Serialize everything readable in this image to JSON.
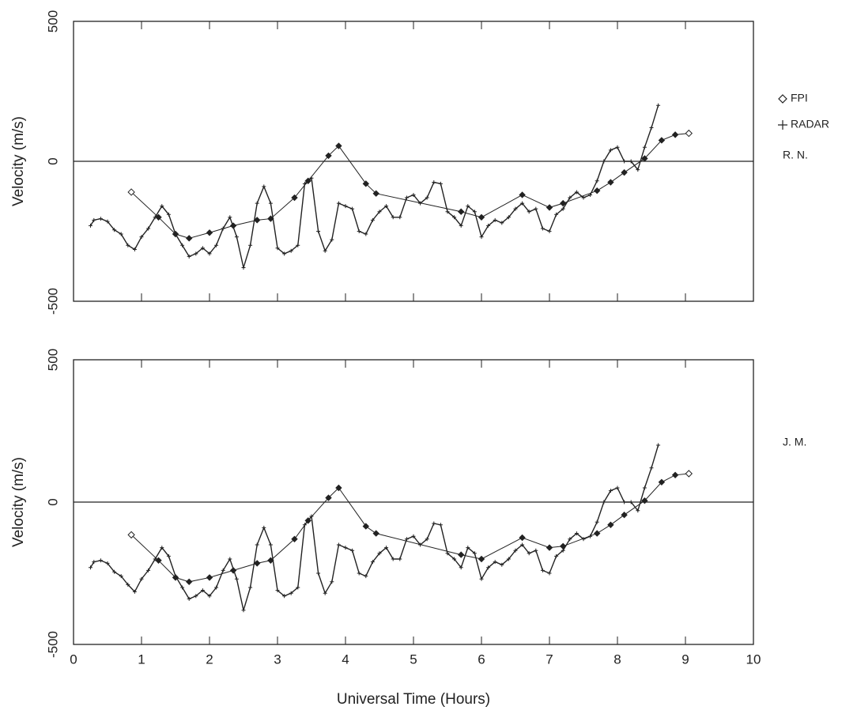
{
  "chart_data": [
    {
      "type": "line",
      "ylabel": "Velocity (m/s)",
      "xlim": [
        0,
        10
      ],
      "xticks": [
        0,
        1,
        2,
        3,
        4,
        5,
        6,
        7,
        8,
        9,
        10
      ],
      "show_xtick_labels": false,
      "ylim": [
        -500,
        500
      ],
      "yticks": [
        -500,
        0,
        500
      ],
      "hline": 0,
      "legend": "right",
      "annotation": "R. N.",
      "series": [
        {
          "name": "FPI",
          "marker": "diamond",
          "color": "#222",
          "x": [
            0.85,
            1.25,
            1.5,
            1.7,
            2.0,
            2.35,
            2.7,
            2.9,
            3.25,
            3.45,
            3.75,
            3.9,
            4.3,
            4.45,
            5.7,
            6.0,
            6.6,
            7.0,
            7.2,
            7.7,
            7.9,
            8.1,
            8.4,
            8.65,
            8.85,
            9.05
          ],
          "values": [
            -110,
            -200,
            -260,
            -275,
            -255,
            -230,
            -210,
            -205,
            -130,
            -70,
            20,
            55,
            -80,
            -115,
            -180,
            -200,
            -120,
            -165,
            -150,
            -105,
            -75,
            -40,
            10,
            75,
            95,
            100
          ]
        },
        {
          "name": "RADAR",
          "marker": "plus",
          "color": "#222",
          "x": [
            0.25,
            0.3,
            0.4,
            0.5,
            0.6,
            0.7,
            0.8,
            0.9,
            1.0,
            1.1,
            1.2,
            1.3,
            1.4,
            1.5,
            1.6,
            1.7,
            1.8,
            1.9,
            2.0,
            2.1,
            2.2,
            2.3,
            2.4,
            2.5,
            2.6,
            2.7,
            2.8,
            2.9,
            3.0,
            3.1,
            3.2,
            3.3,
            3.4,
            3.5,
            3.6,
            3.7,
            3.8,
            3.9,
            4.0,
            4.1,
            4.2,
            4.3,
            4.4,
            4.5,
            4.6,
            4.7,
            4.8,
            4.9,
            5.0,
            5.1,
            5.2,
            5.3,
            5.4,
            5.5,
            5.6,
            5.7,
            5.8,
            5.9,
            6.0,
            6.1,
            6.2,
            6.3,
            6.4,
            6.5,
            6.6,
            6.7,
            6.8,
            6.9,
            7.0,
            7.1,
            7.2,
            7.3,
            7.4,
            7.5,
            7.6,
            7.7,
            7.8,
            7.9,
            8.0,
            8.1,
            8.2,
            8.3,
            8.4,
            8.5,
            8.6
          ],
          "values": [
            -230,
            -210,
            -205,
            -215,
            -245,
            -260,
            -300,
            -315,
            -270,
            -240,
            -200,
            -160,
            -190,
            -260,
            -300,
            -340,
            -330,
            -310,
            -330,
            -300,
            -240,
            -200,
            -270,
            -380,
            -300,
            -150,
            -90,
            -150,
            -310,
            -330,
            -320,
            -300,
            -80,
            -60,
            -250,
            -320,
            -280,
            -150,
            -160,
            -170,
            -250,
            -260,
            -210,
            -180,
            -160,
            -200,
            -200,
            -130,
            -120,
            -150,
            -130,
            -75,
            -80,
            -180,
            -200,
            -230,
            -160,
            -180,
            -270,
            -230,
            -210,
            -220,
            -200,
            -170,
            -150,
            -180,
            -170,
            -240,
            -250,
            -190,
            -170,
            -130,
            -110,
            -130,
            -120,
            -70,
            0,
            40,
            50,
            0,
            0,
            -30,
            50,
            120,
            200
          ]
        }
      ]
    },
    {
      "type": "line",
      "ylabel": "Velocity (m/s)",
      "xlabel": "Universal Time (Hours)",
      "xlim": [
        0,
        10
      ],
      "xticks": [
        0,
        1,
        2,
        3,
        4,
        5,
        6,
        7,
        8,
        9,
        10
      ],
      "show_xtick_labels": true,
      "ylim": [
        -500,
        500
      ],
      "yticks": [
        -500,
        0,
        500
      ],
      "hline": 0,
      "annotation": "J. M.",
      "series": [
        {
          "name": "FPI",
          "marker": "diamond",
          "color": "#222",
          "x": [
            0.85,
            1.25,
            1.5,
            1.7,
            2.0,
            2.35,
            2.7,
            2.9,
            3.25,
            3.45,
            3.75,
            3.9,
            4.3,
            4.45,
            5.7,
            6.0,
            6.6,
            7.0,
            7.2,
            7.7,
            7.9,
            8.1,
            8.4,
            8.65,
            8.85,
            9.05
          ],
          "values": [
            -115,
            -205,
            -265,
            -280,
            -265,
            -240,
            -215,
            -205,
            -130,
            -65,
            15,
            50,
            -85,
            -110,
            -185,
            -200,
            -125,
            -160,
            -155,
            -110,
            -80,
            -45,
            5,
            70,
            95,
            100
          ]
        },
        {
          "name": "RADAR",
          "marker": "plus",
          "color": "#222",
          "x": [
            0.25,
            0.3,
            0.4,
            0.5,
            0.6,
            0.7,
            0.8,
            0.9,
            1.0,
            1.1,
            1.2,
            1.3,
            1.4,
            1.5,
            1.6,
            1.7,
            1.8,
            1.9,
            2.0,
            2.1,
            2.2,
            2.3,
            2.4,
            2.5,
            2.6,
            2.7,
            2.8,
            2.9,
            3.0,
            3.1,
            3.2,
            3.3,
            3.4,
            3.5,
            3.6,
            3.7,
            3.8,
            3.9,
            4.0,
            4.1,
            4.2,
            4.3,
            4.4,
            4.5,
            4.6,
            4.7,
            4.8,
            4.9,
            5.0,
            5.1,
            5.2,
            5.3,
            5.4,
            5.5,
            5.6,
            5.7,
            5.8,
            5.9,
            6.0,
            6.1,
            6.2,
            6.3,
            6.4,
            6.5,
            6.6,
            6.7,
            6.8,
            6.9,
            7.0,
            7.1,
            7.2,
            7.3,
            7.4,
            7.5,
            7.6,
            7.7,
            7.8,
            7.9,
            8.0,
            8.1,
            8.2,
            8.3,
            8.4,
            8.5,
            8.6
          ],
          "values": [
            -230,
            -210,
            -205,
            -215,
            -245,
            -260,
            -290,
            -315,
            -270,
            -240,
            -200,
            -160,
            -190,
            -260,
            -300,
            -340,
            -330,
            -310,
            -330,
            -300,
            -240,
            -200,
            -270,
            -380,
            -300,
            -150,
            -90,
            -150,
            -310,
            -330,
            -320,
            -300,
            -80,
            -50,
            -250,
            -320,
            -280,
            -150,
            -160,
            -170,
            -250,
            -260,
            -210,
            -180,
            -160,
            -200,
            -200,
            -130,
            -120,
            -150,
            -130,
            -75,
            -80,
            -180,
            -200,
            -230,
            -160,
            -180,
            -270,
            -230,
            -210,
            -220,
            -200,
            -170,
            -150,
            -180,
            -170,
            -240,
            -250,
            -190,
            -170,
            -130,
            -110,
            -130,
            -120,
            -70,
            0,
            40,
            50,
            0,
            0,
            -30,
            50,
            120,
            200
          ]
        }
      ]
    }
  ]
}
